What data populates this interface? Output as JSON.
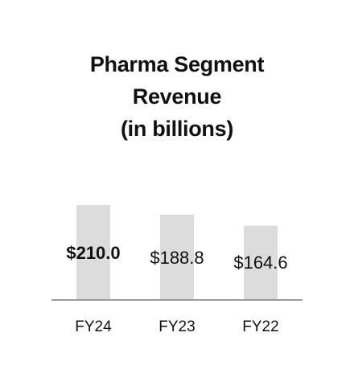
{
  "chart_data": {
    "type": "bar",
    "title": [
      "Pharma Segment",
      "Revenue",
      "(in billions)"
    ],
    "categories": [
      "FY24",
      "FY23",
      "FY22"
    ],
    "values": [
      210.0,
      188.8,
      164.6
    ],
    "value_labels": [
      "$210.0",
      "$188.8",
      "$164.6"
    ],
    "highlighted_category": "FY24",
    "xlabel": "",
    "ylabel": "",
    "grid": false,
    "bar_color": "#dcdcdc",
    "axis_color": "#9a9a9a",
    "text_color": "#111111"
  }
}
